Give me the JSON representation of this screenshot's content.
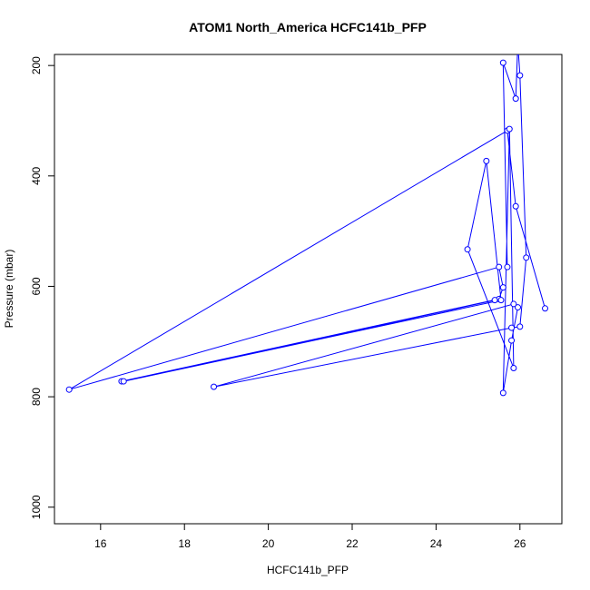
{
  "chart_data": {
    "type": "line",
    "title": "ATOM1 North_America HCFC141b_PFP",
    "xlabel": "HCFC141b_PFP",
    "ylabel": "Pressure (mbar)",
    "xlim": [
      14.9,
      27.0
    ],
    "ylim": [
      1030,
      180
    ],
    "y_reversed": true,
    "x_ticks": [
      16,
      18,
      20,
      22,
      24,
      26
    ],
    "y_ticks": [
      200,
      400,
      600,
      800,
      1000
    ],
    "series_color": "#0000ff",
    "marker": "open-circle",
    "points": [
      {
        "x": 26.6,
        "y": 640
      },
      {
        "x": 25.9,
        "y": 455
      },
      {
        "x": 25.7,
        "y": 318
      },
      {
        "x": 15.25,
        "y": 787
      },
      {
        "x": 25.5,
        "y": 565
      },
      {
        "x": 25.6,
        "y": 602
      },
      {
        "x": 25.5,
        "y": 623
      },
      {
        "x": 16.5,
        "y": 772
      },
      {
        "x": 25.4,
        "y": 625
      },
      {
        "x": 16.55,
        "y": 772
      },
      {
        "x": 25.55,
        "y": 625
      },
      {
        "x": 25.2,
        "y": 373
      },
      {
        "x": 24.75,
        "y": 533
      },
      {
        "x": 25.85,
        "y": 748
      },
      {
        "x": 25.75,
        "y": 315
      },
      {
        "x": 25.6,
        "y": 793
      },
      {
        "x": 25.8,
        "y": 698
      },
      {
        "x": 25.95,
        "y": 638
      },
      {
        "x": 25.85,
        "y": 632
      },
      {
        "x": 18.7,
        "y": 782
      },
      {
        "x": 25.8,
        "y": 675
      },
      {
        "x": 26.0,
        "y": 673
      },
      {
        "x": 26.15,
        "y": 548
      },
      {
        "x": 26.0,
        "y": 218
      },
      {
        "x": 25.95,
        "y": 160
      },
      {
        "x": 25.9,
        "y": 260
      },
      {
        "x": 25.6,
        "y": 195
      },
      {
        "x": 25.7,
        "y": 565
      }
    ]
  }
}
